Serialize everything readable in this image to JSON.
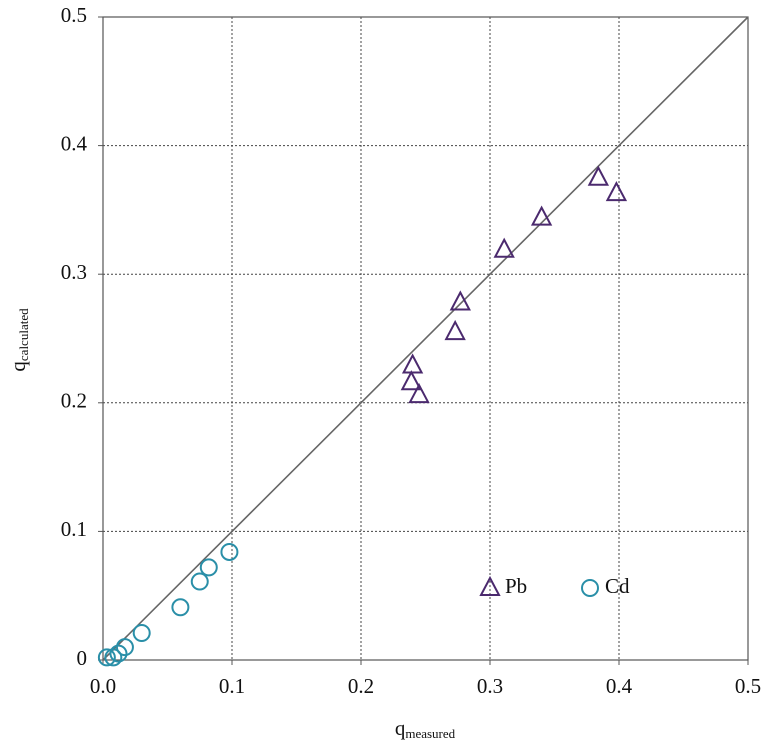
{
  "chart_data": {
    "type": "scatter",
    "xlabel": "q",
    "xlabel_subscript": "measured",
    "ylabel": "q",
    "ylabel_subscript": "calculated",
    "xlim": [
      0,
      0.5
    ],
    "ylim": [
      0,
      0.5
    ],
    "xticks": [
      {
        "value": 0,
        "label": "0.0"
      },
      0.1,
      0.2,
      0.3,
      0.4,
      0.5
    ],
    "yticks": [
      0,
      0.1,
      0.2,
      0.3,
      0.4,
      0.5
    ],
    "grid": true,
    "identity_line": true,
    "legend": "lower right",
    "series": [
      {
        "name": "Pb",
        "color": "#4b2a6e",
        "marker": "triangle",
        "x": [
          0.24,
          0.239,
          0.245,
          0.273,
          0.277,
          0.311,
          0.34,
          0.384,
          0.398
        ],
        "values": [
          0.229,
          0.216,
          0.206,
          0.255,
          0.278,
          0.319,
          0.344,
          0.375,
          0.363
        ]
      },
      {
        "name": "Cd",
        "color": "#2a8fa8",
        "marker": "circle",
        "x": [
          0.003,
          0.008,
          0.012,
          0.017,
          0.03,
          0.06,
          0.075,
          0.082,
          0.098
        ],
        "values": [
          0.002,
          0.002,
          0.005,
          0.01,
          0.021,
          0.041,
          0.061,
          0.072,
          0.084
        ]
      }
    ]
  }
}
